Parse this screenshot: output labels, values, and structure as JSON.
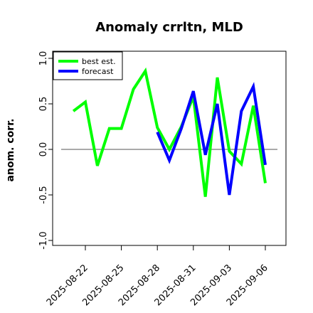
{
  "chart_data": {
    "type": "line",
    "title": "Anomaly crrltn, MLD",
    "xlabel": "",
    "ylabel": "anom. corr.",
    "ylim": [
      -1.0,
      1.0
    ],
    "yticks": [
      -1.0,
      -0.5,
      0.0,
      0.5,
      1.0
    ],
    "ytick_labels": [
      "-1.0",
      "-0.5",
      "0.0",
      "0.5",
      "1.0"
    ],
    "xticks": [
      "2025-08-22",
      "2025-08-25",
      "2025-08-28",
      "2025-08-31",
      "2025-09-03",
      "2025-09-06"
    ],
    "xtick_colors": [
      "#000000",
      "#000000",
      "#228b22",
      "#000000",
      "#000000",
      "#000000"
    ],
    "reference_line": 0.0,
    "legend": {
      "position": "top-left"
    },
    "series": [
      {
        "name": "best est.",
        "color": "#00ff00",
        "x": [
          "2025-08-21",
          "2025-08-22",
          "2025-08-23",
          "2025-08-24",
          "2025-08-25",
          "2025-08-26",
          "2025-08-27",
          "2025-08-28",
          "2025-08-29",
          "2025-08-30",
          "2025-08-31",
          "2025-09-01",
          "2025-09-02",
          "2025-09-03",
          "2025-09-04",
          "2025-09-05",
          "2025-09-06"
        ],
        "values": [
          0.42,
          0.52,
          -0.18,
          0.23,
          0.23,
          0.66,
          0.86,
          0.24,
          0.0,
          0.25,
          0.58,
          -0.52,
          0.79,
          -0.02,
          -0.16,
          0.48,
          -0.37
        ]
      },
      {
        "name": "forecast",
        "color": "#0000ff",
        "x": [
          "2025-08-28",
          "2025-08-29",
          "2025-08-30",
          "2025-08-31",
          "2025-09-01",
          "2025-09-02",
          "2025-09-03",
          "2025-09-04",
          "2025-09-05",
          "2025-09-06"
        ],
        "values": [
          0.19,
          -0.12,
          0.23,
          0.64,
          -0.06,
          0.5,
          -0.5,
          0.42,
          0.69,
          -0.17
        ]
      }
    ]
  }
}
